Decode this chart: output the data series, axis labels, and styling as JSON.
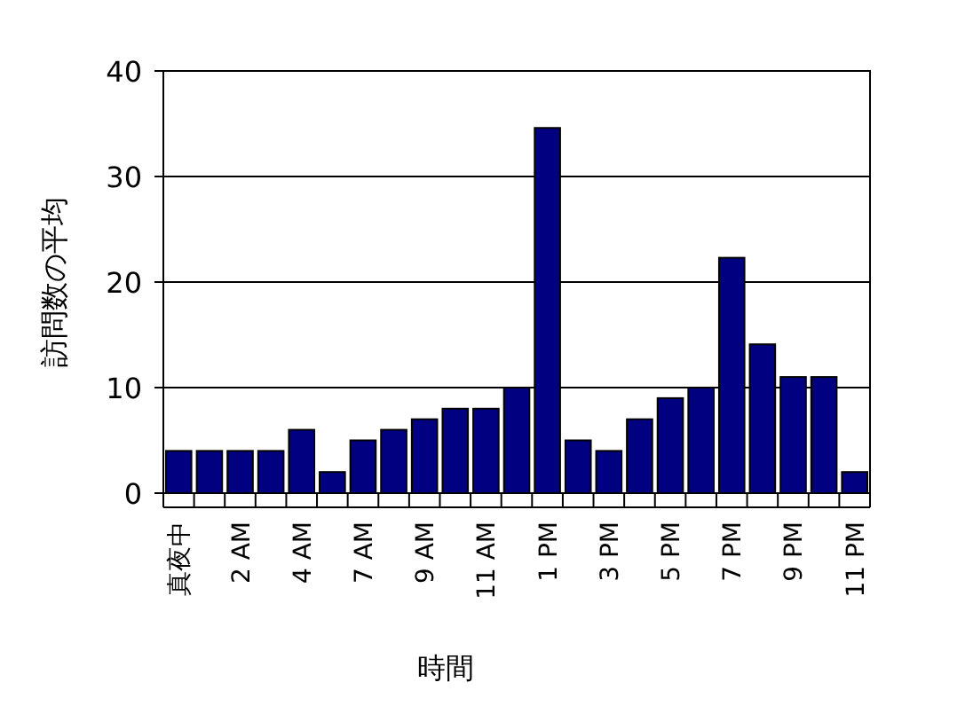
{
  "chart_data": {
    "type": "bar",
    "xlabel": "時間",
    "ylabel": "訪問数の平均",
    "categories": [
      "真夜中",
      null,
      "2 AM",
      null,
      "4 AM",
      null,
      "7 AM",
      null,
      "9 AM",
      null,
      "11 AM",
      null,
      "1 PM",
      null,
      "3 PM",
      null,
      "5 PM",
      null,
      "7 PM",
      null,
      "9 PM",
      null,
      "11 PM"
    ],
    "values": [
      4,
      4,
      4,
      4,
      6,
      2,
      5,
      6,
      7,
      8,
      8,
      10,
      34.6,
      5,
      4,
      7,
      9,
      10,
      22.3,
      14.1,
      11,
      11,
      2
    ],
    "color": "#000080",
    "ylim": [
      0,
      40
    ],
    "yticks": [
      0,
      10,
      20,
      30,
      40
    ],
    "grid": "y"
  }
}
